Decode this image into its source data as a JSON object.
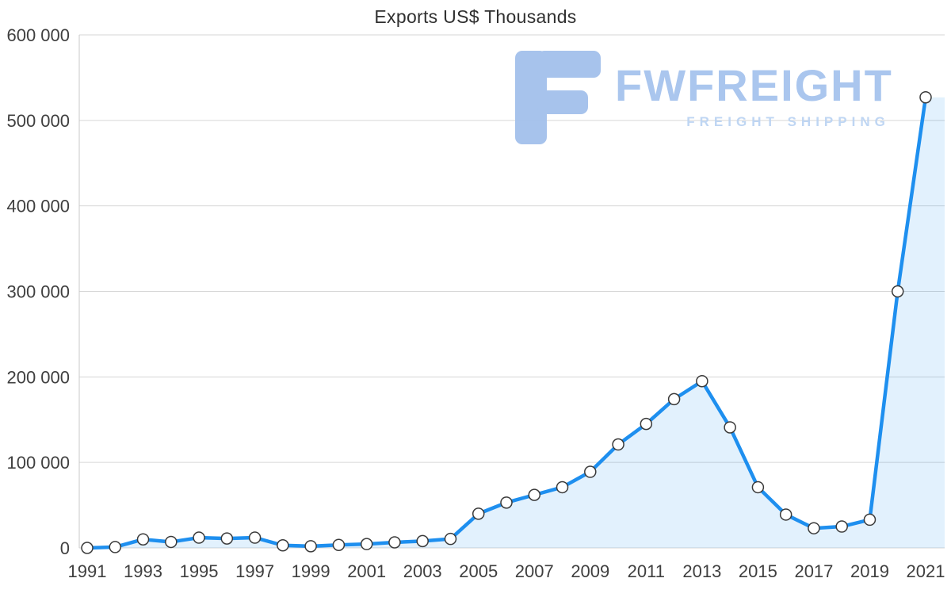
{
  "chart": {
    "title": "Exports US$ Thousands"
  },
  "watermark": {
    "brand": "FWFREIGHT",
    "tagline": "FREIGHT SHIPPING",
    "icon": "fwfreight-logo-icon",
    "color": "#a3c0ec",
    "tagline_color": "#bcd4f3"
  },
  "chart_data": {
    "type": "area",
    "title": "Exports US$ Thousands",
    "x": [
      1991,
      1992,
      1993,
      1994,
      1995,
      1996,
      1997,
      1998,
      1999,
      2000,
      2001,
      2002,
      2003,
      2004,
      2005,
      2006,
      2007,
      2008,
      2009,
      2010,
      2011,
      2012,
      2013,
      2014,
      2015,
      2016,
      2017,
      2018,
      2019,
      2020,
      2021
    ],
    "values": [
      0,
      1000,
      10000,
      7000,
      12000,
      11000,
      12000,
      3000,
      2000,
      3500,
      4500,
      6500,
      8000,
      10500,
      40000,
      53000,
      62000,
      71000,
      89000,
      121000,
      145000,
      174000,
      195000,
      141000,
      71000,
      39000,
      23000,
      25000,
      33000,
      300000,
      527000
    ],
    "ylim": [
      0,
      600000
    ],
    "ytick_step": 100000,
    "ytick_labels": [
      "0",
      "100 000",
      "200 000",
      "300 000",
      "400 000",
      "500 000",
      "600 000"
    ],
    "xtick_labels": [
      "1991",
      "1993",
      "1995",
      "1997",
      "1999",
      "2001",
      "2003",
      "2005",
      "2007",
      "2009",
      "2011",
      "2013",
      "2015",
      "2017",
      "2019",
      "2021"
    ],
    "xlabel": "",
    "ylabel": "",
    "grid": "horizontal",
    "legend": "none",
    "marker": "circle-white",
    "colors": {
      "line": "#1e8fef",
      "area": "rgba(30,143,239,0.13)",
      "grid": "#d6d6d6",
      "axis": "#c9c9c9",
      "tick_text": "#3f3f3f",
      "marker_stroke": "#3a3a3a",
      "marker_fill": "#ffffff"
    }
  }
}
